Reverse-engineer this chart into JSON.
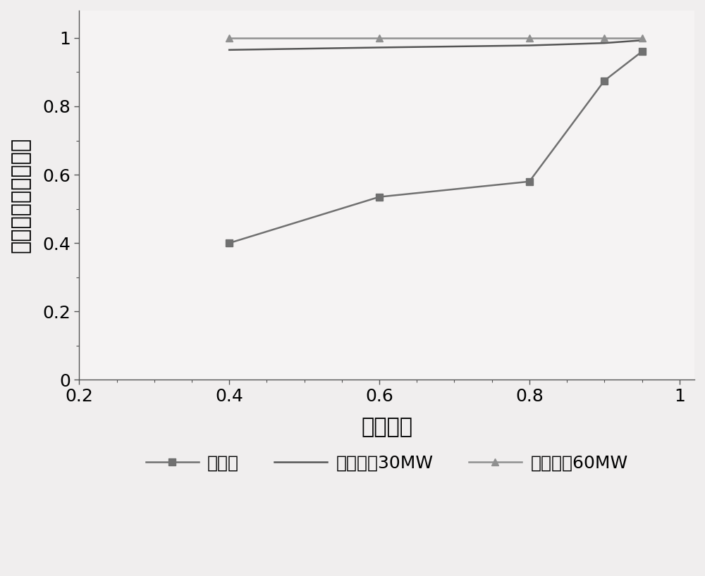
{
  "series1_x": [
    0.4,
    0.6,
    0.8,
    0.9,
    0.95
  ],
  "series1_y": [
    0.4,
    0.535,
    0.58,
    0.875,
    0.96
  ],
  "series1_label": "无抄蓄",
  "series1_color": "#707070",
  "series1_marker": "s",
  "series1_markersize": 7,
  "series1_linewidth": 1.8,
  "series2_x": [
    0.4,
    0.6,
    0.8,
    0.9,
    0.95
  ],
  "series2_y": [
    0.965,
    0.972,
    0.978,
    0.985,
    0.993
  ],
  "series2_label": "抄蓄装机30MW",
  "series2_color": "#555555",
  "series2_marker": "None",
  "series2_linewidth": 1.8,
  "series3_x": [
    0.4,
    0.6,
    0.8,
    0.9,
    0.95
  ],
  "series3_y": [
    1.0,
    1.0,
    1.0,
    1.0,
    1.0
  ],
  "series3_label": "抄蓄装机60MW",
  "series3_color": "#909090",
  "series3_marker": "^",
  "series3_markersize": 7,
  "series3_linewidth": 1.8,
  "xlabel": "置信水平",
  "ylabel": "机组组合可靠性水平",
  "xlim": [
    0.2,
    1.02
  ],
  "ylim": [
    0.0,
    1.08
  ],
  "xticks": [
    0.2,
    0.4,
    0.6,
    0.8,
    1.0
  ],
  "yticks": [
    0.0,
    0.2,
    0.4,
    0.6,
    0.8,
    1.0
  ],
  "xtick_labels": [
    "0.2",
    "0.4",
    "0.6",
    "0.8",
    "1"
  ],
  "ytick_labels": [
    "0",
    "0.2",
    "0.4",
    "0.6",
    "0.8",
    "1"
  ],
  "background_color": "#f0eeee",
  "plot_bg_color": "#f5f3f3"
}
